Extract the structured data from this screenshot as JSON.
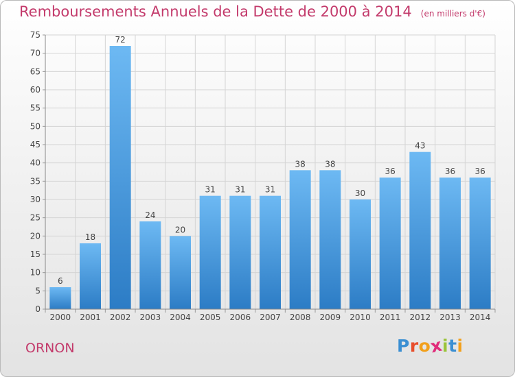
{
  "chart_data": {
    "type": "bar",
    "title": "Remboursements Annuels de la Dette de 2000 à 2014",
    "unit_label": "(en milliers d'€)",
    "xlabel": "",
    "ylabel": "",
    "ylim": [
      0,
      75
    ],
    "yticks": [
      0,
      5,
      10,
      15,
      20,
      25,
      30,
      35,
      40,
      45,
      50,
      55,
      60,
      65,
      70,
      75
    ],
    "grid": true,
    "categories": [
      "2000",
      "2001",
      "2002",
      "2003",
      "2004",
      "2005",
      "2006",
      "2007",
      "2008",
      "2009",
      "2010",
      "2011",
      "2012",
      "2013",
      "2014"
    ],
    "values": [
      6,
      18,
      72,
      24,
      20,
      31,
      31,
      31,
      38,
      38,
      30,
      36,
      43,
      36,
      36
    ]
  },
  "commune": "ORNON",
  "logo": {
    "text": "Proxiti",
    "letter_colors": [
      "#3b8fd2",
      "#e84e2c",
      "#f2a01c",
      "#e02d7b",
      "#9ac43a",
      "#3b8fd2",
      "#f2a01c"
    ]
  },
  "colors": {
    "title": "#c33a6b",
    "bar_light": "#6db9f3",
    "bar_dark": "#2c7cc5"
  }
}
